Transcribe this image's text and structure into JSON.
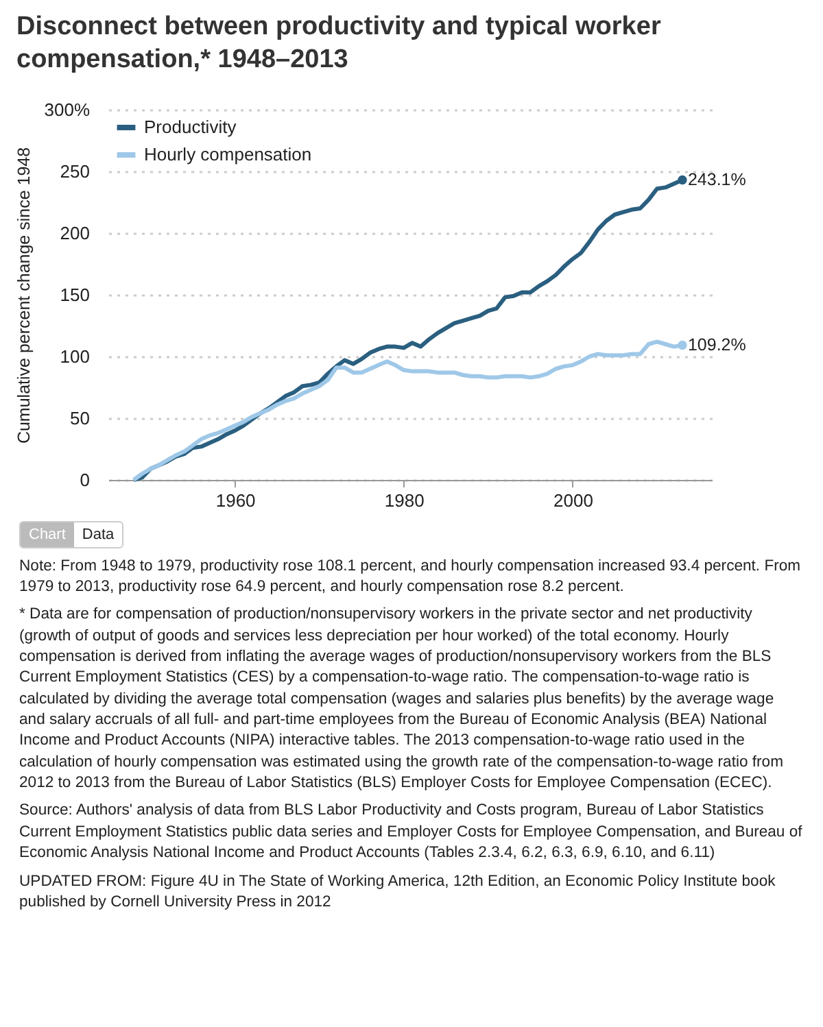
{
  "chart_data": {
    "type": "line",
    "title": "Disconnect between productivity and typical worker compensation,* 1948–2013",
    "ylabel": "Cumulative percent change since 1948",
    "x": [
      1948,
      1949,
      1950,
      1951,
      1952,
      1953,
      1954,
      1955,
      1956,
      1957,
      1958,
      1959,
      1960,
      1961,
      1962,
      1963,
      1964,
      1965,
      1966,
      1967,
      1968,
      1969,
      1970,
      1971,
      1972,
      1973,
      1974,
      1975,
      1976,
      1977,
      1978,
      1979,
      1980,
      1981,
      1982,
      1983,
      1984,
      1985,
      1986,
      1987,
      1988,
      1989,
      1990,
      1991,
      1992,
      1993,
      1994,
      1995,
      1996,
      1997,
      1998,
      1999,
      2000,
      2001,
      2002,
      2003,
      2004,
      2005,
      2006,
      2007,
      2008,
      2009,
      2010,
      2011,
      2012,
      2013
    ],
    "series": [
      {
        "name": "Productivity",
        "color": "#2a5f80",
        "values": [
          0,
          2,
          9,
          12,
          15,
          19,
          21,
          26,
          27,
          30,
          33,
          37,
          40,
          44,
          49,
          54,
          58,
          63,
          68,
          71,
          76,
          77,
          79,
          86,
          92,
          97,
          94,
          98,
          103,
          106,
          108,
          108,
          107,
          111,
          108,
          114,
          119,
          123,
          127,
          129,
          131,
          133,
          137,
          139,
          148,
          149,
          152,
          152,
          157,
          161,
          166,
          173,
          179,
          184,
          193,
          203,
          210,
          215,
          217,
          219,
          220,
          227,
          236,
          237,
          240,
          243.1
        ],
        "value_labels": [
          null,
          null,
          null,
          null,
          null,
          null,
          null,
          null,
          null,
          null,
          null,
          null,
          null,
          null,
          null,
          null,
          null,
          null,
          null,
          null,
          null,
          null,
          null,
          null,
          null,
          null,
          null,
          null,
          null,
          null,
          null,
          null,
          null,
          null,
          null,
          null,
          null,
          null,
          null,
          null,
          null,
          null,
          null,
          null,
          null,
          null,
          null,
          null,
          null,
          null,
          null,
          null,
          null,
          null,
          null,
          null,
          null,
          null,
          null,
          null,
          null,
          null,
          null,
          null,
          null,
          "243.1%"
        ]
      },
      {
        "name": "Hourly compensation",
        "color": "#9fc8e8",
        "values": [
          0,
          5,
          9,
          12,
          16,
          20,
          23,
          28,
          33,
          36,
          38,
          41,
          44,
          47,
          51,
          54,
          57,
          61,
          64,
          66,
          70,
          73,
          76,
          81,
          91,
          91,
          87,
          87,
          90,
          93,
          96,
          93,
          89,
          88,
          88,
          88,
          87,
          87,
          87,
          85,
          84,
          84,
          83,
          83,
          84,
          84,
          84,
          83,
          84,
          86,
          90,
          92,
          93,
          96,
          100,
          102,
          101,
          101,
          101,
          102,
          102,
          110,
          112,
          110,
          108,
          109.2
        ],
        "value_labels": [
          null,
          null,
          null,
          null,
          null,
          null,
          null,
          null,
          null,
          null,
          null,
          null,
          null,
          null,
          null,
          null,
          null,
          null,
          null,
          null,
          null,
          null,
          null,
          null,
          null,
          null,
          null,
          null,
          null,
          null,
          null,
          null,
          null,
          null,
          null,
          null,
          null,
          null,
          null,
          null,
          null,
          null,
          null,
          null,
          null,
          null,
          null,
          null,
          null,
          null,
          null,
          null,
          null,
          null,
          null,
          null,
          null,
          null,
          null,
          null,
          null,
          null,
          null,
          null,
          null,
          "109.2%"
        ]
      }
    ],
    "xlim": [
      1945,
      2016.5
    ],
    "xticks": [
      1960,
      1980,
      2000
    ],
    "ylim": [
      0,
      300
    ],
    "yticks": [
      0,
      50,
      100,
      150,
      200,
      250,
      {
        "value": 300,
        "label": "300%"
      }
    ],
    "grid": "y",
    "legend": "top left",
    "line_style": "solid",
    "annotations": [
      "Chart",
      "Data",
      "Note: From 1948 to 1979, productivity rose 108.1 percent, and hourly compensation increased 93.4 percent. From 1979 to 2013, productivity rose 64.9 percent, and hourly compensation rose 8.2 percent.",
      "* Data are for compensation of production/nonsupervisory workers in the private sector and net productivity (growth of output of goods and services less depreciation per hour worked) of the total economy. Hourly compensation is derived from inflating the average wages of production/nonsupervisory workers from the BLS Current Employment Statistics (CES) by a compensation-to-wage ratio. The compensation-to-wage ratio is calculated by dividing the average total compensation (wages and salaries plus benefits) by the average wage and salary accruals of all full- and part-time employees from the Bureau of Economic Analysis (BEA) National Income and Product Accounts (NIPA) interactive tables. The 2013 compensation-to-wage ratio used in the calculation of hourly compensation was estimated using the growth rate of the compensation-to-wage ratio from 2012 to 2013 from the Bureau of Labor Statistics (BLS) Employer Costs for Employee Compensation (ECEC).",
      "Source: Authors' analysis of data from BLS Labor Productivity and Costs program, Bureau of Labor Statistics Current Employment Statistics public data series and Employer Costs for Employee Compensation, and Bureau of Economic Analysis National Income and Product Accounts (Tables 2.3.4, 6.2, 6.3, 6.9, 6.10, and 6.11)",
      "UPDATED FROM: Figure 4U in The State of Working America, 12th Edition, an Economic Policy Institute book published by Cornell University Press in 2012"
    ]
  }
}
